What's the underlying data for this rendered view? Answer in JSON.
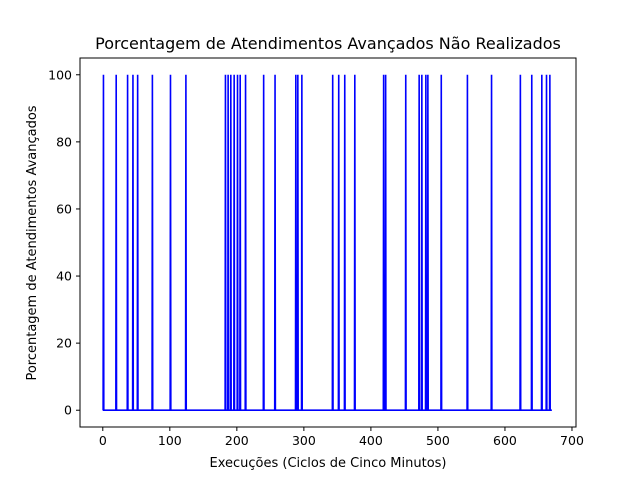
{
  "chart_data": {
    "type": "line",
    "title": "Porcentagem de Atendimentos Avançados Não Realizados",
    "xlabel": "Execuções (Ciclos de Cinco Minutos)",
    "ylabel": "Porcentagem de Atendimentos Avançados",
    "xlim": [
      -34,
      706
    ],
    "ylim": [
      -5,
      105
    ],
    "xticks": [
      0,
      100,
      200,
      300,
      400,
      500,
      600,
      700
    ],
    "xtick_labels": [
      "0",
      "100",
      "200",
      "300",
      "400",
      "500",
      "600",
      "700"
    ],
    "yticks": [
      0,
      20,
      40,
      60,
      80,
      100
    ],
    "ytick_labels": [
      "0",
      "20",
      "40",
      "60",
      "80",
      "100"
    ],
    "grid": false,
    "legend": "none",
    "line_color": "#0000ff",
    "x_end": 670,
    "baseline": 0,
    "spike_value": 100,
    "spike_x": [
      1,
      20,
      37,
      45,
      52,
      74,
      101,
      124,
      183,
      187,
      191,
      196,
      201,
      205,
      213,
      240,
      257,
      288,
      291,
      297,
      343,
      352,
      361,
      376,
      419,
      422,
      452,
      472,
      476,
      482,
      485,
      505,
      544,
      580,
      623,
      640,
      655,
      662,
      667
    ]
  }
}
